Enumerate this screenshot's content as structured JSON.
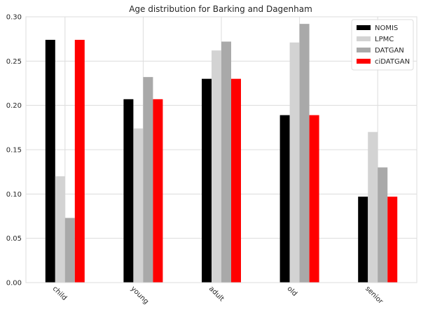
{
  "chart_data": {
    "type": "bar",
    "title": "Age distribution for Barking and Dagenham",
    "xlabel": "",
    "ylabel": "",
    "categories": [
      "child",
      "young",
      "adult",
      "old",
      "senior"
    ],
    "ylim": [
      0,
      0.3
    ],
    "yticks": [
      "0.00",
      "0.05",
      "0.10",
      "0.15",
      "0.20",
      "0.25",
      "0.30"
    ],
    "grid": true,
    "legend_position": "top-right",
    "series": [
      {
        "name": "NOMIS",
        "color": "#000000",
        "values": [
          0.274,
          0.207,
          0.23,
          0.189,
          0.097
        ]
      },
      {
        "name": "LPMC",
        "color": "#d3d3d3",
        "values": [
          0.12,
          0.174,
          0.262,
          0.271,
          0.17
        ]
      },
      {
        "name": "DATGAN",
        "color": "#a9a9a9",
        "values": [
          0.073,
          0.232,
          0.272,
          0.292,
          0.13
        ]
      },
      {
        "name": "ciDATGAN",
        "color": "#ff0000",
        "values": [
          0.274,
          0.207,
          0.23,
          0.189,
          0.097
        ]
      }
    ]
  }
}
